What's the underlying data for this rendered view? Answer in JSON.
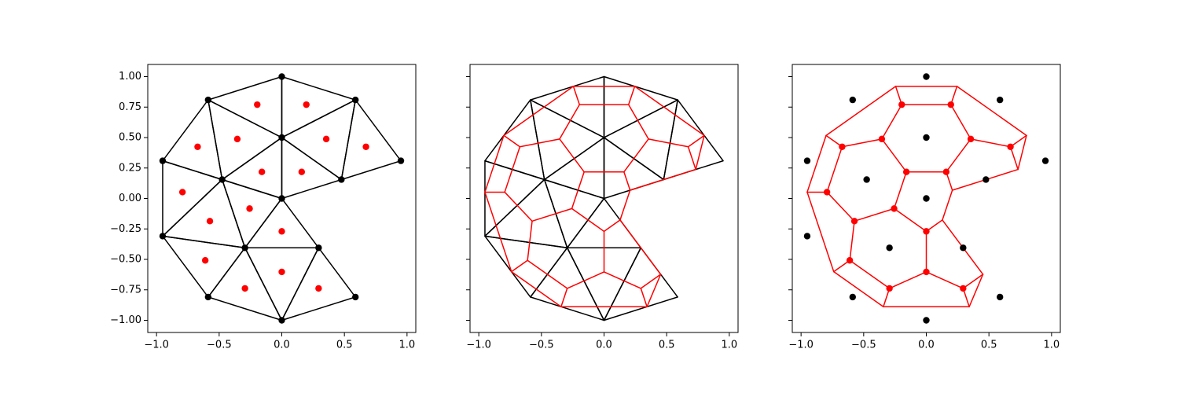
{
  "chart_data": [
    {
      "type": "mesh",
      "draw_triangles": true,
      "draw_vertices": true,
      "draw_centroids": true,
      "draw_dual": false,
      "show_ytick_labels": true,
      "vertices": {
        "color": "#000000",
        "x": [
          0,
          -0.588,
          0.588,
          -0.951,
          0.951,
          0,
          -0.476,
          0.476,
          0,
          -0.951,
          -0.294,
          0.294,
          -0.588,
          0.588,
          0
        ],
        "y": [
          1,
          0.809,
          0.809,
          0.309,
          0.309,
          0.5,
          0.155,
          0.155,
          0,
          -0.309,
          -0.405,
          -0.405,
          -0.809,
          -0.809,
          -1
        ]
      },
      "triangles": [
        [
          0,
          1,
          5
        ],
        [
          0,
          2,
          5
        ],
        [
          1,
          5,
          6
        ],
        [
          2,
          5,
          7
        ],
        [
          1,
          3,
          6
        ],
        [
          2,
          4,
          7
        ],
        [
          5,
          6,
          8
        ],
        [
          5,
          7,
          8
        ],
        [
          3,
          6,
          9
        ],
        [
          6,
          8,
          10
        ],
        [
          6,
          9,
          10
        ],
        [
          8,
          10,
          11
        ],
        [
          9,
          10,
          12
        ],
        [
          10,
          11,
          14
        ],
        [
          10,
          12,
          14
        ],
        [
          11,
          13,
          14
        ]
      ],
      "triangle_color": "#000000",
      "centroids": {
        "color": "#ff0000",
        "x": [
          -0.196,
          0.196,
          -0.355,
          0.355,
          -0.672,
          0.672,
          -0.159,
          0.159,
          -0.793,
          -0.257,
          -0.574,
          0,
          -0.611,
          0,
          -0.294,
          0.294
        ],
        "y": [
          0.77,
          0.77,
          0.488,
          0.488,
          0.424,
          0.424,
          0.218,
          0.218,
          0.052,
          -0.083,
          -0.186,
          -0.27,
          -0.508,
          -0.603,
          -0.738,
          -0.738
        ]
      },
      "xlim": [
        -1.07,
        1.07
      ],
      "ylim": [
        -1.1,
        1.1
      ],
      "xticks": [
        {
          "value": -1,
          "label": "−1.0"
        },
        {
          "value": -0.5,
          "label": "−0.5"
        },
        {
          "value": 0,
          "label": "0.0"
        },
        {
          "value": 0.5,
          "label": "0.5"
        },
        {
          "value": 1,
          "label": "1.0"
        }
      ],
      "yticks": [
        {
          "value": -1,
          "label": "−1.00"
        },
        {
          "value": -0.75,
          "label": "−0.75"
        },
        {
          "value": -0.5,
          "label": "−0.50"
        },
        {
          "value": -0.25,
          "label": "−0.25"
        },
        {
          "value": 0,
          "label": "0.00"
        },
        {
          "value": 0.25,
          "label": "0.25"
        },
        {
          "value": 0.5,
          "label": "0.50"
        },
        {
          "value": 0.75,
          "label": "0.75"
        },
        {
          "value": 1,
          "label": "1.00"
        }
      ]
    },
    {
      "type": "mesh",
      "draw_triangles": true,
      "draw_vertices": false,
      "draw_centroids": false,
      "draw_dual": true,
      "show_ytick_labels": false,
      "vertices": {
        "color": "#000000",
        "x": [
          0,
          -0.588,
          0.588,
          -0.951,
          0.951,
          0,
          -0.476,
          0.476,
          0,
          -0.951,
          -0.294,
          0.294,
          -0.588,
          0.588,
          0
        ],
        "y": [
          1,
          0.809,
          0.809,
          0.309,
          0.309,
          0.5,
          0.155,
          0.155,
          0,
          -0.309,
          -0.405,
          -0.405,
          -0.809,
          -0.809,
          -1
        ]
      },
      "triangles": [
        [
          0,
          1,
          5
        ],
        [
          0,
          2,
          5
        ],
        [
          1,
          5,
          6
        ],
        [
          2,
          5,
          7
        ],
        [
          1,
          3,
          6
        ],
        [
          2,
          4,
          7
        ],
        [
          5,
          6,
          8
        ],
        [
          5,
          7,
          8
        ],
        [
          3,
          6,
          9
        ],
        [
          6,
          8,
          10
        ],
        [
          6,
          9,
          10
        ],
        [
          8,
          10,
          11
        ],
        [
          9,
          10,
          12
        ],
        [
          10,
          11,
          14
        ],
        [
          10,
          12,
          14
        ],
        [
          11,
          13,
          14
        ]
      ],
      "triangle_color": "#000000",
      "centroids": {
        "color": "#ff0000",
        "x": [
          -0.196,
          0.196,
          -0.355,
          0.355,
          -0.672,
          0.672,
          -0.159,
          0.159,
          -0.793,
          -0.257,
          -0.574,
          0,
          -0.611,
          0,
          -0.294,
          0.294
        ],
        "y": [
          0.77,
          0.77,
          0.488,
          0.488,
          0.424,
          0.424,
          0.218,
          0.218,
          0.052,
          -0.083,
          -0.186,
          -0.27,
          -0.508,
          -0.603,
          -0.738,
          -0.738
        ]
      },
      "dual_color": "#ff0000",
      "xlim": [
        -1.07,
        1.07
      ],
      "ylim": [
        -1.1,
        1.1
      ],
      "xticks": [
        {
          "value": -1,
          "label": "−1.0"
        },
        {
          "value": -0.5,
          "label": "−0.5"
        },
        {
          "value": 0,
          "label": "0.0"
        },
        {
          "value": 0.5,
          "label": "0.5"
        },
        {
          "value": 1,
          "label": "1.0"
        }
      ],
      "yticks": [
        -1,
        -0.75,
        -0.5,
        -0.25,
        0,
        0.25,
        0.5,
        0.75,
        1
      ]
    },
    {
      "type": "mesh",
      "draw_triangles": false,
      "draw_vertices": true,
      "draw_centroids": true,
      "draw_dual": true,
      "show_ytick_labels": false,
      "vertices": {
        "color": "#000000",
        "x": [
          0,
          -0.588,
          0.588,
          -0.951,
          0.951,
          0,
          -0.476,
          0.476,
          0,
          -0.951,
          -0.294,
          0.294,
          -0.588,
          0.588,
          0
        ],
        "y": [
          1,
          0.809,
          0.809,
          0.309,
          0.309,
          0.5,
          0.155,
          0.155,
          0,
          -0.309,
          -0.405,
          -0.405,
          -0.809,
          -0.809,
          -1
        ]
      },
      "triangles": [
        [
          0,
          1,
          5
        ],
        [
          0,
          2,
          5
        ],
        [
          1,
          5,
          6
        ],
        [
          2,
          5,
          7
        ],
        [
          1,
          3,
          6
        ],
        [
          2,
          4,
          7
        ],
        [
          5,
          6,
          8
        ],
        [
          5,
          7,
          8
        ],
        [
          3,
          6,
          9
        ],
        [
          6,
          8,
          10
        ],
        [
          6,
          9,
          10
        ],
        [
          8,
          10,
          11
        ],
        [
          9,
          10,
          12
        ],
        [
          10,
          11,
          14
        ],
        [
          10,
          12,
          14
        ],
        [
          11,
          13,
          14
        ]
      ],
      "centroids": {
        "color": "#ff0000",
        "x": [
          -0.196,
          0.196,
          -0.355,
          0.355,
          -0.672,
          0.672,
          -0.159,
          0.159,
          -0.793,
          -0.257,
          -0.574,
          0,
          -0.611,
          0,
          -0.294,
          0.294
        ],
        "y": [
          0.77,
          0.77,
          0.488,
          0.488,
          0.424,
          0.424,
          0.218,
          0.218,
          0.052,
          -0.083,
          -0.186,
          -0.27,
          -0.508,
          -0.603,
          -0.738,
          -0.738
        ]
      },
      "dual_color": "#ff0000",
      "xlim": [
        -1.07,
        1.07
      ],
      "ylim": [
        -1.1,
        1.1
      ],
      "xticks": [
        {
          "value": -1,
          "label": "−1.0"
        },
        {
          "value": -0.5,
          "label": "−0.5"
        },
        {
          "value": 0,
          "label": "0.0"
        },
        {
          "value": 0.5,
          "label": "0.5"
        },
        {
          "value": 1,
          "label": "1.0"
        }
      ],
      "yticks": [
        -1,
        -0.75,
        -0.5,
        -0.25,
        0,
        0.25,
        0.5,
        0.75,
        1
      ]
    }
  ]
}
